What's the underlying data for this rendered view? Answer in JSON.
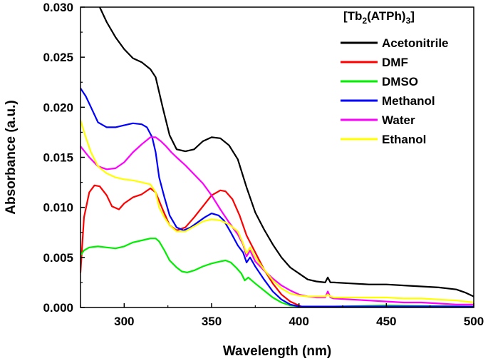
{
  "chart_data": {
    "type": "line",
    "title": "",
    "xlabel": "Wavelength (nm)",
    "ylabel": "Absorbance (a.u.)",
    "xlim": [
      275,
      500
    ],
    "ylim": [
      0.0,
      0.03
    ],
    "x_ticks": [
      300,
      350,
      400,
      450,
      500
    ],
    "x_tick_labels": [
      "300",
      "350",
      "400",
      "450",
      "500"
    ],
    "y_ticks": [
      0.0,
      0.005,
      0.01,
      0.015,
      0.02,
      0.025,
      0.03
    ],
    "y_tick_labels": [
      "0.000",
      "0.005",
      "0.010",
      "0.015",
      "0.020",
      "0.025",
      "0.030"
    ],
    "legend": {
      "title_main": "[Tb",
      "title_sub1": "2",
      "title_mid": "(ATPh)",
      "title_sub2": "3",
      "title_end": "]",
      "position": "top-right"
    },
    "series": [
      {
        "name": "Acetonitrile",
        "color": "#000000",
        "x": [
          286,
          290,
          295,
          300,
          305,
          310,
          315,
          318,
          322,
          326,
          330,
          335,
          340,
          345,
          350,
          355,
          360,
          365,
          370,
          375,
          380,
          385,
          390,
          395,
          400,
          405,
          410,
          415,
          416.5,
          418,
          420,
          430,
          440,
          450,
          460,
          470,
          480,
          490,
          495,
          500
        ],
        "y": [
          0.03,
          0.0285,
          0.027,
          0.0258,
          0.0249,
          0.0245,
          0.0238,
          0.023,
          0.02,
          0.0172,
          0.0158,
          0.0156,
          0.0158,
          0.0166,
          0.017,
          0.0169,
          0.0162,
          0.0148,
          0.012,
          0.0095,
          0.0078,
          0.0063,
          0.005,
          0.004,
          0.0034,
          0.0028,
          0.0026,
          0.0025,
          0.003,
          0.0025,
          0.0025,
          0.0024,
          0.0023,
          0.0023,
          0.0022,
          0.0021,
          0.002,
          0.0018,
          0.0015,
          0.0011
        ]
      },
      {
        "name": "DMF",
        "color": "#ff0000",
        "x": [
          275,
          277,
          280,
          283,
          286,
          290,
          293,
          297,
          300,
          305,
          310,
          315,
          318,
          322,
          326,
          330,
          335,
          340,
          345,
          350,
          355,
          358,
          362,
          366,
          370,
          375,
          380,
          385,
          390,
          395,
          400,
          403
        ],
        "y": [
          0.0035,
          0.009,
          0.0115,
          0.0122,
          0.0121,
          0.0112,
          0.0101,
          0.0098,
          0.0104,
          0.011,
          0.0113,
          0.0119,
          0.0115,
          0.0098,
          0.0082,
          0.0077,
          0.008,
          0.009,
          0.0101,
          0.0112,
          0.0117,
          0.0116,
          0.0108,
          0.0092,
          0.0072,
          0.0055,
          0.0038,
          0.0024,
          0.0013,
          0.0006,
          0.0002,
          0.0
        ]
      },
      {
        "name": "DMSO",
        "color": "#00ee00",
        "x": [
          275,
          277,
          280,
          285,
          290,
          295,
          300,
          305,
          310,
          315,
          318,
          320,
          323,
          326,
          330,
          333,
          336,
          340,
          345,
          350,
          355,
          358,
          361,
          364,
          367,
          369,
          371,
          375,
          380,
          385,
          390,
          395,
          400,
          420,
          450,
          500
        ],
        "y": [
          0.0052,
          0.0057,
          0.006,
          0.0061,
          0.006,
          0.0059,
          0.0061,
          0.0065,
          0.0067,
          0.0069,
          0.0069,
          0.0066,
          0.0057,
          0.0047,
          0.004,
          0.0036,
          0.0035,
          0.0037,
          0.0041,
          0.0044,
          0.0046,
          0.0047,
          0.0045,
          0.004,
          0.0034,
          0.0027,
          0.003,
          0.0024,
          0.0017,
          0.001,
          0.0005,
          0.0002,
          0.0001,
          0.0001,
          0.0002,
          0.0001
        ]
      },
      {
        "name": "Methanol",
        "color": "#0000ff",
        "x": [
          275,
          278,
          281,
          285,
          290,
          295,
          300,
          305,
          310,
          313,
          316,
          318,
          320,
          323,
          326,
          330,
          334,
          338,
          342,
          346,
          350,
          354,
          357,
          361,
          365,
          368,
          370,
          372,
          375,
          380,
          385,
          390,
          395,
          400,
          410,
          420,
          450,
          480,
          500
        ],
        "y": [
          0.0219,
          0.0211,
          0.02,
          0.0185,
          0.018,
          0.018,
          0.0182,
          0.0184,
          0.0183,
          0.018,
          0.017,
          0.0155,
          0.013,
          0.011,
          0.0092,
          0.008,
          0.0077,
          0.008,
          0.0085,
          0.009,
          0.0094,
          0.0092,
          0.0087,
          0.0075,
          0.0062,
          0.0055,
          0.0045,
          0.005,
          0.0041,
          0.0028,
          0.0016,
          0.0008,
          0.0003,
          0.0001,
          0.0001,
          0.0001,
          0.0001,
          0.0001,
          0.0001
        ]
      },
      {
        "name": "Water",
        "color": "#ff00ff",
        "x": [
          275,
          280,
          285,
          290,
          295,
          300,
          305,
          310,
          315,
          318,
          321,
          324,
          327,
          330,
          335,
          340,
          345,
          350,
          355,
          360,
          365,
          368,
          370,
          372,
          375,
          380,
          385,
          390,
          395,
          400,
          405,
          410,
          415,
          416.5,
          418,
          420,
          430,
          440,
          450,
          460,
          470,
          480,
          490,
          500
        ],
        "y": [
          0.0161,
          0.015,
          0.0141,
          0.0138,
          0.0139,
          0.0145,
          0.0155,
          0.0163,
          0.017,
          0.017,
          0.0166,
          0.0161,
          0.0155,
          0.015,
          0.0142,
          0.0133,
          0.0124,
          0.0112,
          0.0098,
          0.0085,
          0.0073,
          0.0063,
          0.0051,
          0.0057,
          0.0046,
          0.0037,
          0.0029,
          0.0022,
          0.0017,
          0.0013,
          0.0011,
          0.001,
          0.001,
          0.0016,
          0.001,
          0.0009,
          0.0008,
          0.0007,
          0.0006,
          0.0005,
          0.0005,
          0.0004,
          0.0003,
          0.0003
        ]
      },
      {
        "name": "Ethanol",
        "color": "#ffff00",
        "x": [
          275,
          278,
          281,
          285,
          290,
          295,
          300,
          305,
          310,
          315,
          318,
          320,
          323,
          326,
          330,
          335,
          340,
          345,
          350,
          355,
          360,
          365,
          368,
          370,
          372,
          375,
          380,
          385,
          390,
          395,
          400,
          405,
          410,
          415,
          416.5,
          418,
          420,
          430,
          440,
          450,
          460,
          470,
          480,
          490,
          500
        ],
        "y": [
          0.0187,
          0.017,
          0.0155,
          0.0141,
          0.0134,
          0.013,
          0.0128,
          0.0127,
          0.0125,
          0.0123,
          0.0115,
          0.01,
          0.009,
          0.0082,
          0.0076,
          0.0076,
          0.0081,
          0.0086,
          0.0088,
          0.0087,
          0.0083,
          0.0076,
          0.0064,
          0.0054,
          0.006,
          0.005,
          0.0038,
          0.0027,
          0.0019,
          0.0014,
          0.0012,
          0.0011,
          0.0011,
          0.0011,
          0.0013,
          0.0011,
          0.001,
          0.001,
          0.001,
          0.001,
          0.0009,
          0.0009,
          0.0008,
          0.0007,
          0.0005
        ]
      }
    ]
  }
}
